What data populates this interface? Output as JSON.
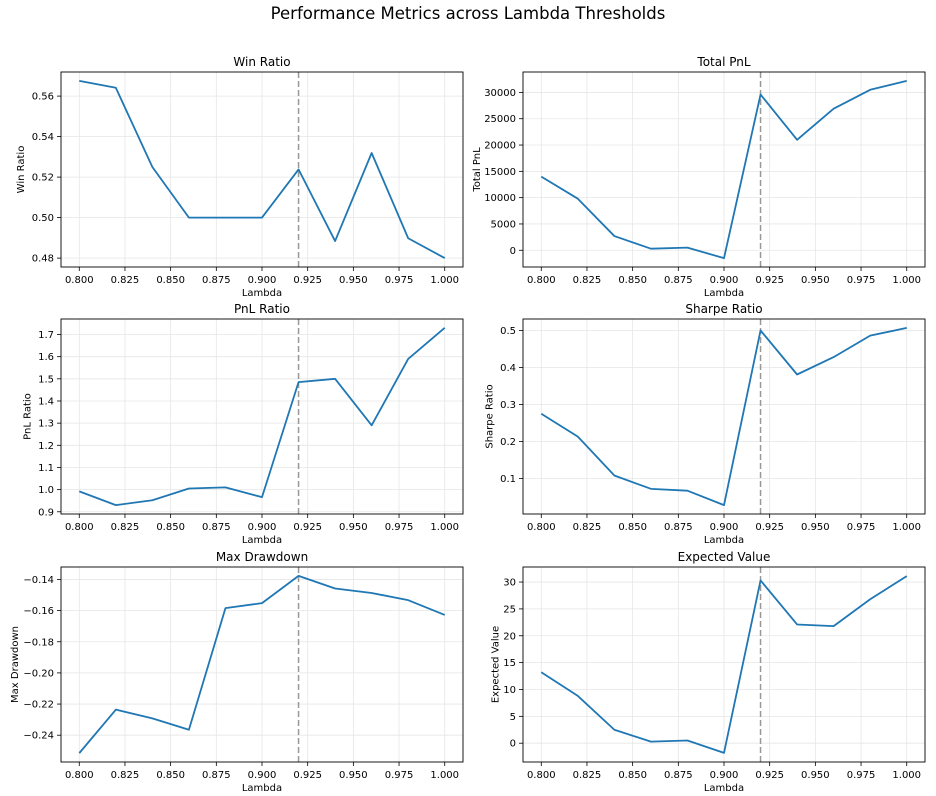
{
  "figure_title": "Performance Metrics across Lambda Thresholds",
  "colors": {
    "line": "#1f77b4",
    "threshold": "#999999",
    "grid": "#e6e6e6"
  },
  "chart_data": [
    {
      "type": "line",
      "title": "Win Ratio",
      "xlabel": "Lambda",
      "ylabel": "Win Ratio",
      "x": [
        0.8,
        0.82,
        0.84,
        0.86,
        0.88,
        0.9,
        0.92,
        0.94,
        0.96,
        0.98,
        1.0
      ],
      "series": [
        {
          "values": [
            0.5675,
            0.5641,
            0.525,
            0.5,
            0.5,
            0.5,
            0.5238,
            0.4884,
            0.5319,
            0.4898,
            0.48
          ]
        }
      ],
      "xlim": [
        0.79,
        1.01
      ],
      "ylim": [
        0.4756,
        0.5719
      ],
      "xticks": [
        0.8,
        0.825,
        0.85,
        0.875,
        0.9,
        0.925,
        0.95,
        0.975,
        1.0
      ],
      "xtick_labels": [
        "0.800",
        "0.825",
        "0.850",
        "0.875",
        "0.900",
        "0.925",
        "0.950",
        "0.975",
        "1.000"
      ],
      "yticks": [
        0.48,
        0.5,
        0.52,
        0.54,
        0.56
      ],
      "ytick_labels": [
        "0.48",
        "0.50",
        "0.52",
        "0.54",
        "0.56"
      ],
      "vline": 0.92,
      "grid": true
    },
    {
      "type": "line",
      "title": "Total PnL",
      "xlabel": "Lambda",
      "ylabel": "Total PnL",
      "x": [
        0.8,
        0.82,
        0.84,
        0.86,
        0.88,
        0.9,
        0.92,
        0.94,
        0.96,
        0.98,
        1.0
      ],
      "series": [
        {
          "values": [
            14000,
            9800,
            2700,
            300,
            500,
            -1500,
            29600,
            21000,
            26900,
            30500,
            32200
          ]
        }
      ],
      "xlim": [
        0.79,
        1.01
      ],
      "ylim": [
        -3180,
        33880
      ],
      "xticks": [
        0.8,
        0.825,
        0.85,
        0.875,
        0.9,
        0.925,
        0.95,
        0.975,
        1.0
      ],
      "xtick_labels": [
        "0.800",
        "0.825",
        "0.850",
        "0.875",
        "0.900",
        "0.925",
        "0.950",
        "0.975",
        "1.000"
      ],
      "yticks": [
        0,
        5000,
        10000,
        15000,
        20000,
        25000,
        30000
      ],
      "ytick_labels": [
        "0",
        "5000",
        "10000",
        "15000",
        "20000",
        "25000",
        "30000"
      ],
      "vline": 0.92,
      "grid": true
    },
    {
      "type": "line",
      "title": "PnL Ratio",
      "xlabel": "Lambda",
      "ylabel": "PnL Ratio",
      "x": [
        0.8,
        0.82,
        0.84,
        0.86,
        0.88,
        0.9,
        0.92,
        0.94,
        0.96,
        0.98,
        1.0
      ],
      "series": [
        {
          "values": [
            0.992,
            0.93,
            0.952,
            1.005,
            1.01,
            0.966,
            1.485,
            1.5,
            1.29,
            1.59,
            1.73
          ]
        }
      ],
      "xlim": [
        0.79,
        1.01
      ],
      "ylim": [
        0.89,
        1.77
      ],
      "xticks": [
        0.8,
        0.825,
        0.85,
        0.875,
        0.9,
        0.925,
        0.95,
        0.975,
        1.0
      ],
      "xtick_labels": [
        "0.800",
        "0.825",
        "0.850",
        "0.875",
        "0.900",
        "0.925",
        "0.950",
        "0.975",
        "1.000"
      ],
      "yticks": [
        0.9,
        1.0,
        1.1,
        1.2,
        1.3,
        1.4,
        1.5,
        1.6,
        1.7
      ],
      "ytick_labels": [
        "0.9",
        "1.0",
        "1.1",
        "1.2",
        "1.3",
        "1.4",
        "1.5",
        "1.6",
        "1.7"
      ],
      "vline": 0.92,
      "grid": true
    },
    {
      "type": "line",
      "title": "Sharpe Ratio",
      "xlabel": "Lambda",
      "ylabel": "Sharpe Ratio",
      "x": [
        0.8,
        0.82,
        0.84,
        0.86,
        0.88,
        0.9,
        0.92,
        0.94,
        0.96,
        0.98,
        1.0
      ],
      "series": [
        {
          "values": [
            0.275,
            0.213,
            0.108,
            0.072,
            0.067,
            0.028,
            0.5,
            0.381,
            0.428,
            0.486,
            0.507
          ]
        }
      ],
      "xlim": [
        0.79,
        1.01
      ],
      "ylim": [
        0.004,
        0.531
      ],
      "xticks": [
        0.8,
        0.825,
        0.85,
        0.875,
        0.9,
        0.925,
        0.95,
        0.975,
        1.0
      ],
      "xtick_labels": [
        "0.800",
        "0.825",
        "0.850",
        "0.875",
        "0.900",
        "0.925",
        "0.950",
        "0.975",
        "1.000"
      ],
      "yticks": [
        0.1,
        0.2,
        0.3,
        0.4,
        0.5
      ],
      "ytick_labels": [
        "0.1",
        "0.2",
        "0.3",
        "0.4",
        "0.5"
      ],
      "vline": 0.92,
      "grid": true
    },
    {
      "type": "line",
      "title": "Max Drawdown",
      "xlabel": "Lambda",
      "ylabel": "Max Drawdown",
      "x": [
        0.8,
        0.82,
        0.84,
        0.86,
        0.88,
        0.9,
        0.92,
        0.94,
        0.96,
        0.98,
        1.0
      ],
      "series": [
        {
          "values": [
            -0.2515,
            -0.2236,
            -0.2292,
            -0.2365,
            -0.1584,
            -0.1552,
            -0.1377,
            -0.1458,
            -0.1487,
            -0.1533,
            -0.1628
          ]
        }
      ],
      "xlim": [
        0.79,
        1.01
      ],
      "ylim": [
        -0.2572,
        -0.132
      ],
      "xticks": [
        0.8,
        0.825,
        0.85,
        0.875,
        0.9,
        0.925,
        0.95,
        0.975,
        1.0
      ],
      "xtick_labels": [
        "0.800",
        "0.825",
        "0.850",
        "0.875",
        "0.900",
        "0.925",
        "0.950",
        "0.975",
        "1.000"
      ],
      "yticks": [
        -0.24,
        -0.22,
        -0.2,
        -0.18,
        -0.16,
        -0.14
      ],
      "ytick_labels": [
        "−0.24",
        "−0.22",
        "−0.20",
        "−0.18",
        "−0.16",
        "−0.14"
      ],
      "vline": 0.92,
      "grid": true
    },
    {
      "type": "line",
      "title": "Expected Value",
      "xlabel": "Lambda",
      "ylabel": "Expected Value",
      "x": [
        0.8,
        0.82,
        0.84,
        0.86,
        0.88,
        0.9,
        0.92,
        0.94,
        0.96,
        0.98,
        1.0
      ],
      "series": [
        {
          "values": [
            13.2,
            8.8,
            2.5,
            0.3,
            0.5,
            -1.8,
            30.3,
            22.1,
            21.8,
            26.8,
            31.1
          ]
        }
      ],
      "xlim": [
        0.79,
        1.01
      ],
      "ylim": [
        -3.5,
        32.8
      ],
      "xticks": [
        0.8,
        0.825,
        0.85,
        0.875,
        0.9,
        0.925,
        0.95,
        0.975,
        1.0
      ],
      "xtick_labels": [
        "0.800",
        "0.825",
        "0.850",
        "0.875",
        "0.900",
        "0.925",
        "0.950",
        "0.975",
        "1.000"
      ],
      "yticks": [
        0,
        5,
        10,
        15,
        20,
        25,
        30
      ],
      "ytick_labels": [
        "0",
        "5",
        "10",
        "15",
        "20",
        "25",
        "30"
      ],
      "vline": 0.92,
      "grid": true
    }
  ]
}
